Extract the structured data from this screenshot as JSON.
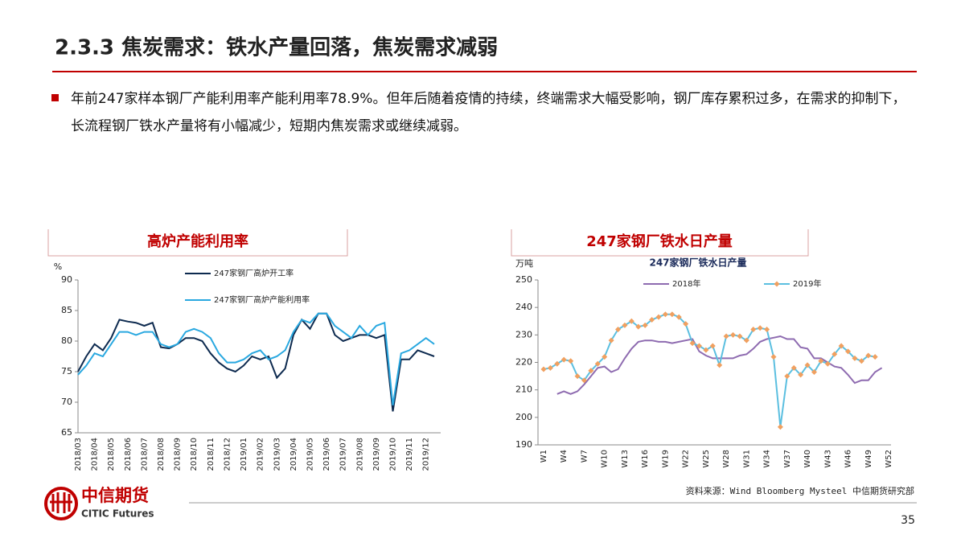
{
  "header": {
    "title": "2.3.3 焦炭需求：铁水产量回落，焦炭需求减弱"
  },
  "bullet": "年前247家样本钢厂产能利用率产能利用率78.9%。但年后随着疫情的持续，终端需求大幅受影响，钢厂库存累积过多，在需求的抑制下，长流程钢厂铁水产量将有小幅减少，短期内焦炭需求或继续减弱。",
  "chart_data": [
    {
      "type": "line",
      "title": "高炉产能利用率",
      "y_label": "%",
      "categories": [
        "2018/03",
        null,
        "2018/04",
        null,
        "2018/05",
        null,
        "2018/06",
        null,
        "2018/07",
        null,
        "2018/08",
        null,
        "2018/09",
        null,
        "2018/10",
        null,
        "2018/11",
        null,
        "2018/12",
        null,
        "2019/01",
        null,
        "2019/02",
        null,
        "2019/03",
        null,
        "2019/04",
        null,
        "2019/05",
        null,
        "2019/06",
        null,
        "2019/07",
        null,
        "2019/08",
        null,
        "2019/09",
        null,
        "2019/10",
        null,
        "2019/11",
        null,
        "2019/12",
        null
      ],
      "series": [
        {
          "name": "247家钢厂高炉开工率",
          "color": "#0d2a4f",
          "values": [
            75,
            77.5,
            79.5,
            78.5,
            80.5,
            83.5,
            83.2,
            83,
            82.5,
            83,
            79,
            78.8,
            79.5,
            80.5,
            80.5,
            80,
            78,
            76.5,
            75.5,
            75,
            76,
            77.5,
            77,
            77.5,
            74,
            75.5,
            81,
            83.5,
            82,
            84.5,
            84.5,
            81,
            80,
            80.5,
            81,
            81,
            80.5,
            81,
            68.5,
            77,
            77,
            78.5,
            78,
            77.5
          ]
        },
        {
          "name": "247家钢厂高炉产能利用率",
          "color": "#29a8e0",
          "values": [
            74.5,
            76,
            78,
            77.5,
            79.5,
            81.5,
            81.5,
            81,
            81.5,
            81.5,
            79.5,
            79,
            79.5,
            81.5,
            82,
            81.5,
            80.5,
            78,
            76.5,
            76.5,
            77,
            78,
            78.5,
            77,
            77.5,
            78.5,
            81.5,
            83.5,
            83,
            84.5,
            84.5,
            82.5,
            81.5,
            80.5,
            82.5,
            81,
            82.5,
            83,
            69.5,
            78,
            78.5,
            79.5,
            80.5,
            79.5
          ]
        }
      ],
      "ylim": [
        65,
        90
      ],
      "yticks": [
        65,
        70,
        75,
        80,
        85,
        90
      ]
    },
    {
      "type": "line",
      "title": "247家钢厂铁水日产量",
      "subtitle": "247家钢厂铁水日产量",
      "y_label": "万吨",
      "categories": [
        "W1",
        null,
        null,
        "W4",
        null,
        null,
        "W7",
        null,
        null,
        "W10",
        null,
        null,
        "W13",
        null,
        null,
        "W16",
        null,
        null,
        "W19",
        null,
        null,
        "W22",
        null,
        null,
        "W25",
        null,
        null,
        "W28",
        null,
        null,
        "W31",
        null,
        null,
        "W34",
        null,
        null,
        "W37",
        null,
        null,
        "W40",
        null,
        null,
        "W43",
        null,
        null,
        "W46",
        null,
        null,
        "W49",
        null,
        null,
        "W52"
      ],
      "series": [
        {
          "name": "2018年",
          "color": "#8e6bb0",
          "values": [
            null,
            null,
            208.5,
            209.5,
            208.5,
            209.5,
            212,
            215,
            218,
            218.5,
            216.5,
            217.5,
            221.5,
            225,
            227.5,
            228,
            228,
            227.5,
            227.5,
            227,
            227.5,
            228,
            228.5,
            224,
            222.5,
            221.5,
            221.5,
            221.5,
            221.5,
            222.5,
            223,
            225,
            227.5,
            228.5,
            229,
            229.5,
            228.5,
            228.5,
            225.5,
            225,
            221.5,
            221.5,
            220,
            218.5,
            218,
            215.5,
            212.5,
            213.5,
            213.5,
            216.5,
            218,
            null
          ]
        },
        {
          "name": "2019年",
          "color": "#5bbfe0",
          "marker": "diamond",
          "marker_color": "#f0a060",
          "values": [
            217.5,
            218,
            219.5,
            221,
            220.5,
            215,
            213.5,
            217,
            219.5,
            222,
            228,
            232,
            233.5,
            235,
            233,
            233.5,
            235.5,
            236.5,
            237.5,
            237.5,
            236.5,
            234,
            227,
            226,
            224.5,
            226,
            219,
            229.5,
            230,
            229.5,
            228,
            232,
            232.5,
            232,
            222,
            196.5,
            215,
            218,
            215.5,
            219,
            216.5,
            220.5,
            219.5,
            223,
            226,
            224,
            221.5,
            220.5,
            222.5,
            222,
            null,
            null
          ]
        }
      ],
      "ylim": [
        190,
        250
      ],
      "yticks": [
        190,
        200,
        210,
        220,
        230,
        240,
        250
      ]
    }
  ],
  "source": "资料来源：Wind Bloomberg Mysteel 中信期货研究部",
  "page_number": "35",
  "logo": {
    "name": "中信期货",
    "english": "CITIC Futures"
  }
}
